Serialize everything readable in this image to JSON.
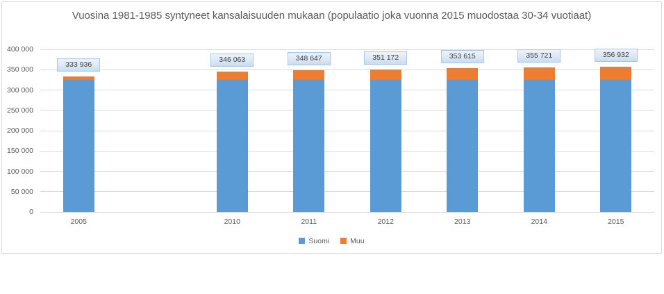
{
  "chart_data": {
    "type": "bar",
    "stacked": true,
    "title": "Vuosina 1981-1985 syntyneet kansalaisuuden mukaan (populaatio joka vuonna 2015 muodostaa 30-34 vuotiaat)",
    "categories": [
      "2005",
      "2010",
      "2011",
      "2012",
      "2013",
      "2014",
      "2015"
    ],
    "series": [
      {
        "name": "Suomi",
        "color": "#5B9BD5",
        "values": [
          325000,
          324000,
          324000,
          324000,
          324000,
          324000,
          324000
        ]
      },
      {
        "name": "Muu",
        "color": "#ED7D31",
        "values": [
          8936,
          22063,
          24647,
          27172,
          29615,
          31721,
          32932
        ]
      }
    ],
    "totals": [
      333936,
      346063,
      348647,
      351172,
      353615,
      355721,
      356932
    ],
    "total_labels": [
      "333 936",
      "346 063",
      "348 647",
      "351 172",
      "353 615",
      "355 721",
      "356 932"
    ],
    "xlabel": "",
    "ylabel": "",
    "y_axis": {
      "min": 0,
      "max": 400000,
      "step": 50000,
      "tick_labels": [
        "0",
        "50 000",
        "100 000",
        "150 000",
        "200 000",
        "250 000",
        "300 000",
        "350 000",
        "400 000"
      ]
    },
    "x_axis": {
      "slot_count": 8,
      "slots": [
        0,
        2,
        3,
        4,
        5,
        6,
        7
      ]
    },
    "legend": {
      "position": "bottom",
      "entries": [
        "Suomi",
        "Muu"
      ]
    },
    "grid": true,
    "colors": {
      "gridline": "#D9D9D9",
      "axis_text": "#595959",
      "title_text": "#595959",
      "data_label_text": "#404040",
      "data_label_border": "#A9C6E8",
      "chart_border": "#D9D9D9"
    }
  }
}
